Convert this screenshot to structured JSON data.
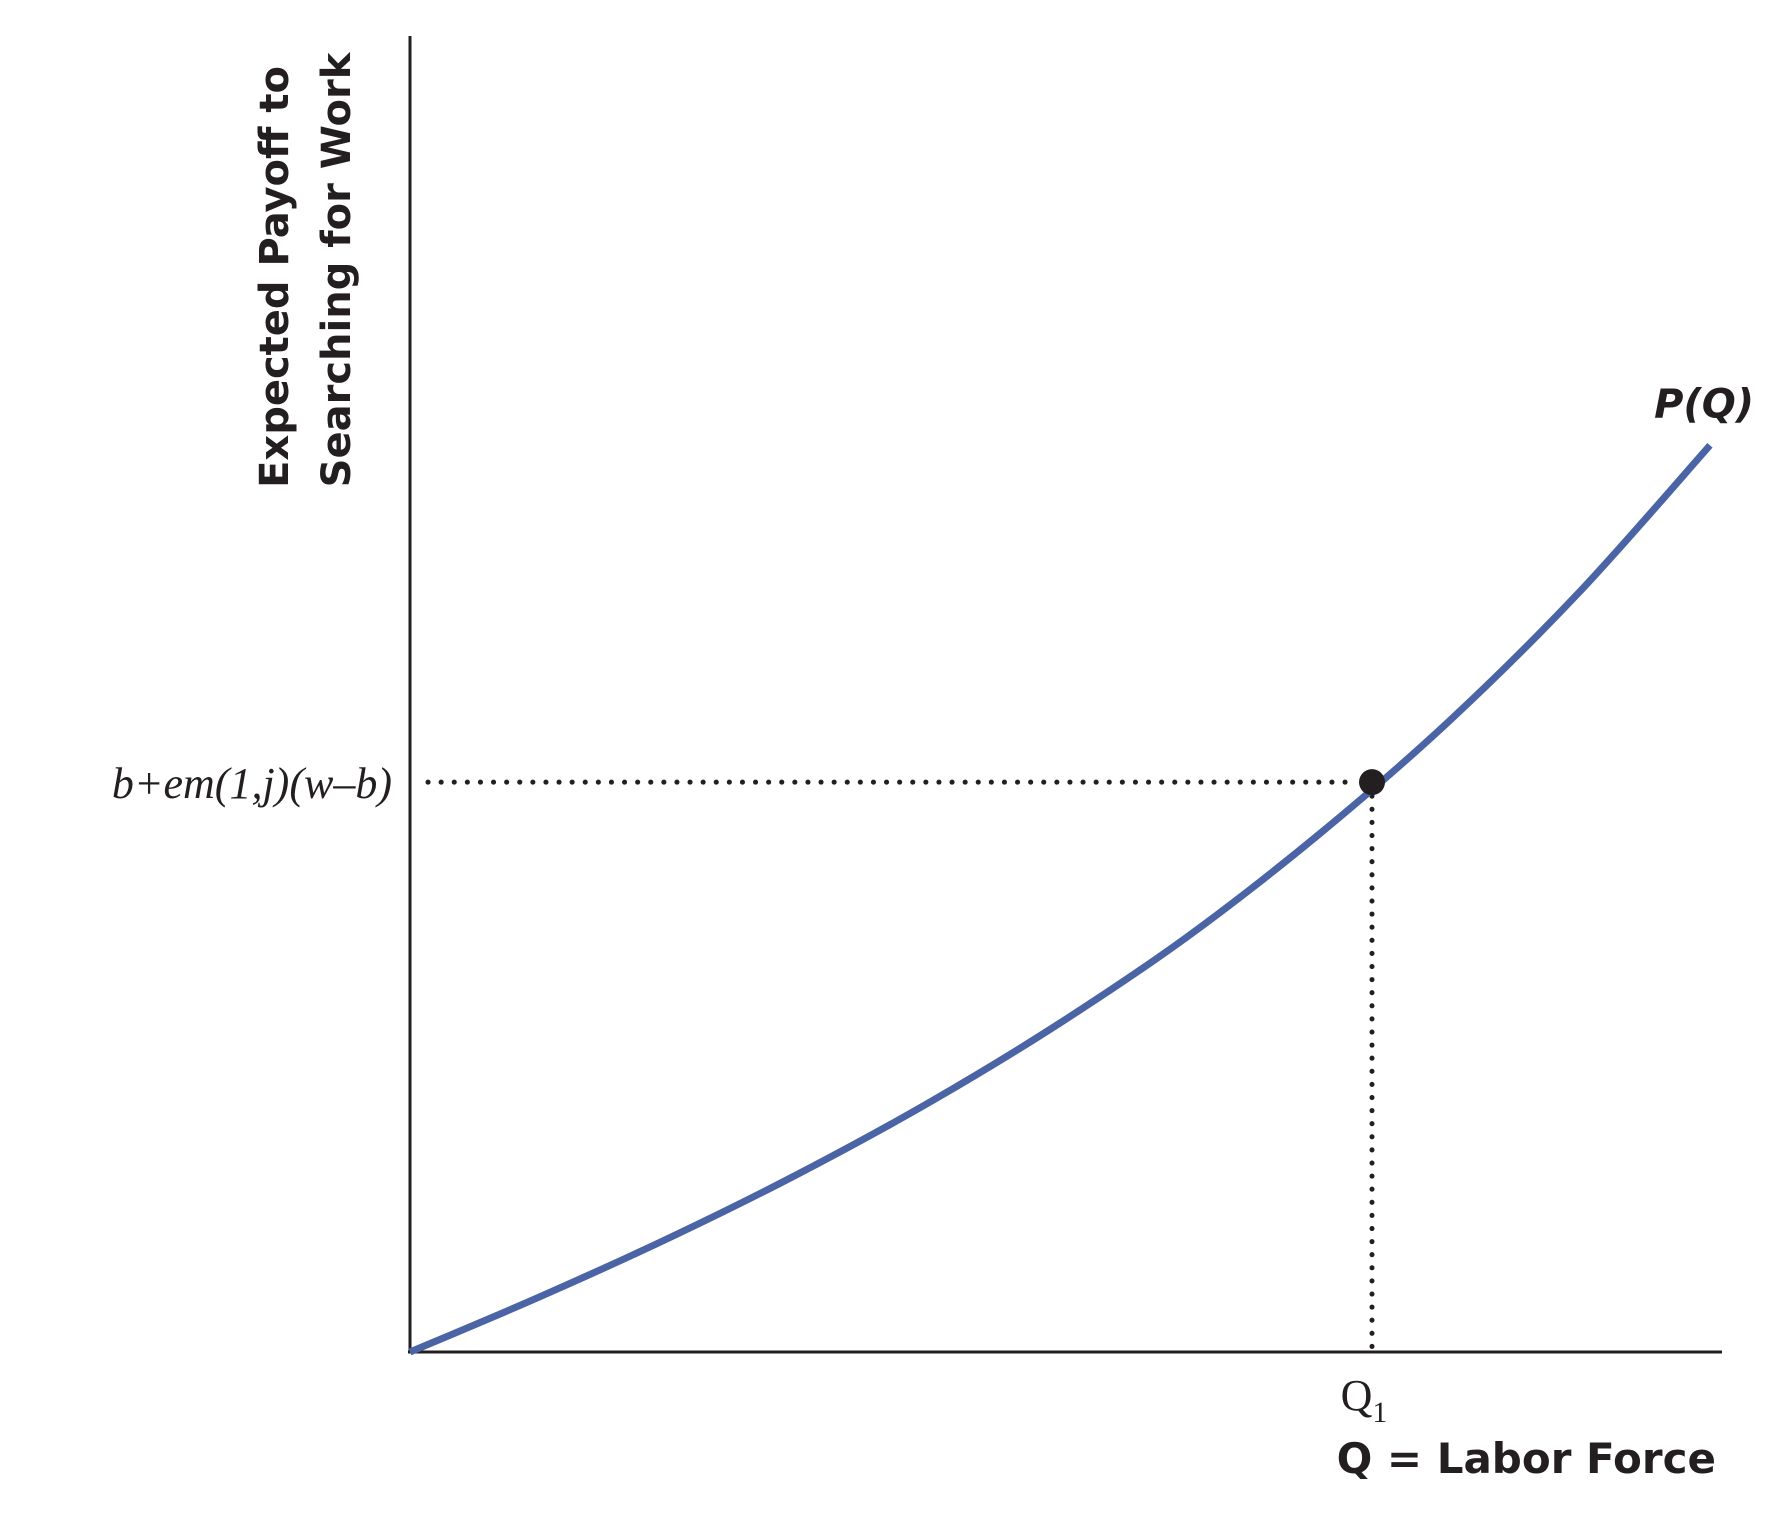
{
  "chart_data": {
    "type": "line",
    "ylabel_lines": [
      "Expected Payoff to",
      "Searching for Work"
    ],
    "xlabel": "Q = Labor Force",
    "series": [
      {
        "name": "P(Q)",
        "x": [
          0,
          0.1,
          0.2,
          0.3,
          0.4,
          0.5,
          0.6,
          0.7,
          0.8,
          0.9,
          1.0
        ],
        "y": [
          0,
          0.042,
          0.087,
          0.136,
          0.19,
          0.25,
          0.317,
          0.394,
          0.48,
          0.578,
          0.689
        ]
      }
    ],
    "highlight_point": {
      "x": 0.74,
      "y": 0.433,
      "x_label": "Q",
      "x_label_sub": "1",
      "y_label": "b+em(1,j)(w–b)"
    },
    "xlim": [
      0,
      1.0
    ],
    "ylim": [
      0,
      1.0
    ],
    "grid": false,
    "colors": {
      "curve": "#4b64a6",
      "axes": "#231f20",
      "point": "#231f20"
    }
  }
}
